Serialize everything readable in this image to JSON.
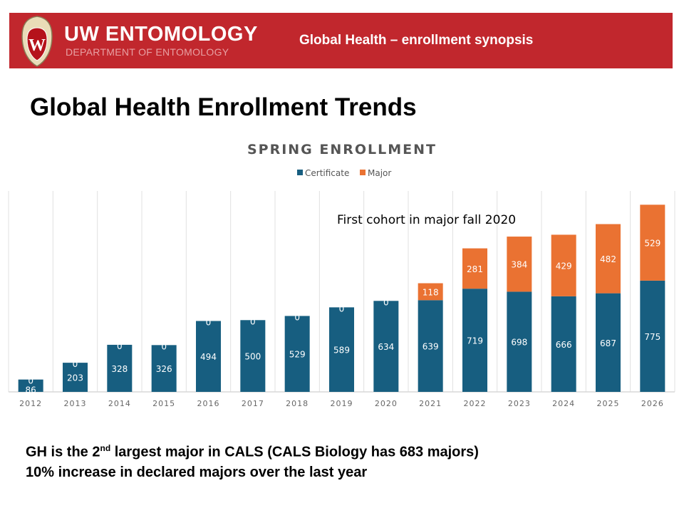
{
  "banner": {
    "brand": "UW ENTOMOLOGY",
    "brand_sub": "DEPARTMENT OF ENTOMOLOGY",
    "title": "Global Health – enrollment synopsis",
    "color": "#c1272d"
  },
  "slide_title": "Global Health Enrollment Trends",
  "chart_data": {
    "type": "bar",
    "stacked": true,
    "title": "SPRING ENROLLMENT",
    "legend_position": "top",
    "categories": [
      "2012",
      "2013",
      "2014",
      "2015",
      "2016",
      "2017",
      "2018",
      "2019",
      "2020",
      "2021",
      "2022",
      "2023",
      "2024",
      "2025",
      "2026"
    ],
    "series": [
      {
        "name": "Certificate",
        "color": "#175e80",
        "values": [
          86,
          203,
          328,
          326,
          494,
          500,
          529,
          589,
          634,
          639,
          719,
          698,
          666,
          687,
          775
        ]
      },
      {
        "name": "Major",
        "color": "#ea7232",
        "values": [
          0,
          0,
          0,
          0,
          0,
          0,
          0,
          0,
          0,
          118,
          281,
          384,
          429,
          482,
          529
        ]
      }
    ],
    "ylim": [
      0,
      1400
    ],
    "grid": "vertical",
    "annotation": "First cohort in major fall 2020"
  },
  "footer": {
    "line1_a": "GH is the 2",
    "line1_sup": "nd",
    "line1_b": " largest major in CALS (CALS Biology has 683 majors)",
    "line2": "10% increase in declared majors over the last year"
  }
}
